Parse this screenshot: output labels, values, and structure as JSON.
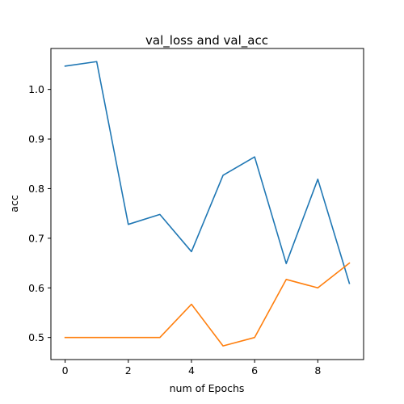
{
  "chart_data": {
    "type": "line",
    "title": "val_loss and val_acc",
    "xlabel": "num of Epochs",
    "ylabel": "acc",
    "x": [
      0,
      1,
      2,
      3,
      4,
      5,
      6,
      7,
      8,
      9
    ],
    "xlim": [
      -0.45,
      9.45
    ],
    "ylim": [
      0.4555,
      1.0825
    ],
    "xticks": [
      0,
      2,
      4,
      6,
      8
    ],
    "yticks": [
      0.5,
      0.6,
      0.7,
      0.8,
      0.9,
      1.0
    ],
    "ytick_labels": [
      "0.5",
      "0.6",
      "0.7",
      "0.8",
      "0.9",
      "1.0"
    ],
    "grid": false,
    "series": [
      {
        "name": "val_loss",
        "color": "#1f77b4",
        "values": [
          1.047,
          1.056,
          0.728,
          0.748,
          0.673,
          0.827,
          0.864,
          0.649,
          0.819,
          0.609
        ]
      },
      {
        "name": "val_acc",
        "color": "#ff7f0e",
        "values": [
          0.5,
          0.5,
          0.5,
          0.5,
          0.567,
          0.483,
          0.5,
          0.617,
          0.6,
          0.65
        ]
      }
    ]
  }
}
